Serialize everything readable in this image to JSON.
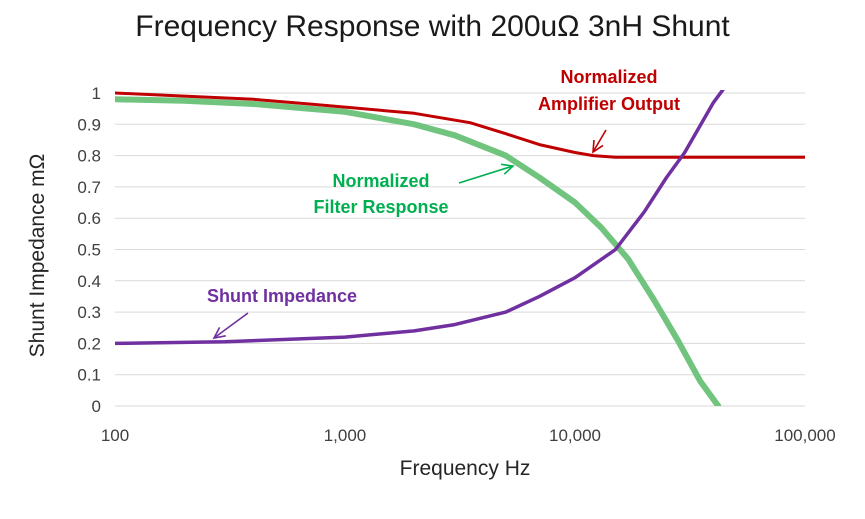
{
  "chart_data": {
    "type": "line",
    "title": "Frequency Response with 200uΩ 3nH Shunt",
    "xlabel": "Frequency  Hz",
    "ylabel": "Shunt Impedance  mΩ",
    "x_scale": "log",
    "xlim": [
      100,
      100000
    ],
    "ylim": [
      0,
      1
    ],
    "x_ticks": [
      "100",
      "1,000",
      "10,000",
      "100,000"
    ],
    "y_ticks": [
      "0",
      "0.1",
      "0.2",
      "0.3",
      "0.4",
      "0.5",
      "0.6",
      "0.7",
      "0.8",
      "0.9",
      "1"
    ],
    "grid": "horizontal",
    "legend": "none",
    "series": [
      {
        "name": "Normalized Amplifier Output",
        "color": "#c00000",
        "x": [
          100,
          200,
          400,
          700,
          1000,
          2000,
          3500,
          5000,
          7000,
          10000,
          12000,
          15000,
          20000,
          50000,
          100000
        ],
        "y": [
          1.0,
          0.99,
          0.98,
          0.965,
          0.955,
          0.935,
          0.905,
          0.87,
          0.835,
          0.81,
          0.8,
          0.795,
          0.795,
          0.795,
          0.795
        ]
      },
      {
        "name": "Normalized Filter Response",
        "color": "#70c47e",
        "x": [
          100,
          200,
          400,
          700,
          1000,
          2000,
          3000,
          5000,
          7000,
          10000,
          13000,
          17000,
          22000,
          28000,
          35000,
          42000
        ],
        "y": [
          0.98,
          0.975,
          0.965,
          0.95,
          0.94,
          0.9,
          0.865,
          0.8,
          0.73,
          0.65,
          0.57,
          0.47,
          0.34,
          0.21,
          0.08,
          0.0
        ]
      },
      {
        "name": "Shunt Impedance",
        "color": "#7030a0",
        "x": [
          100,
          300,
          1000,
          2000,
          3000,
          5000,
          7000,
          10000,
          15000,
          20000,
          25000,
          30000,
          40000,
          45000
        ],
        "y": [
          0.2,
          0.205,
          0.22,
          0.24,
          0.26,
          0.3,
          0.35,
          0.41,
          0.5,
          0.62,
          0.73,
          0.81,
          0.97,
          1.02
        ]
      }
    ],
    "annotations": [
      {
        "text": "Normalized\nAmplifier Output",
        "color": "#c00000",
        "series": "Normalized Amplifier Output"
      },
      {
        "text": "Normalized\nFilter Response",
        "color": "#00b050",
        "series": "Normalized Filter Response"
      },
      {
        "text": "Shunt Impedance",
        "color": "#7030a0",
        "series": "Shunt Impedance"
      }
    ]
  }
}
